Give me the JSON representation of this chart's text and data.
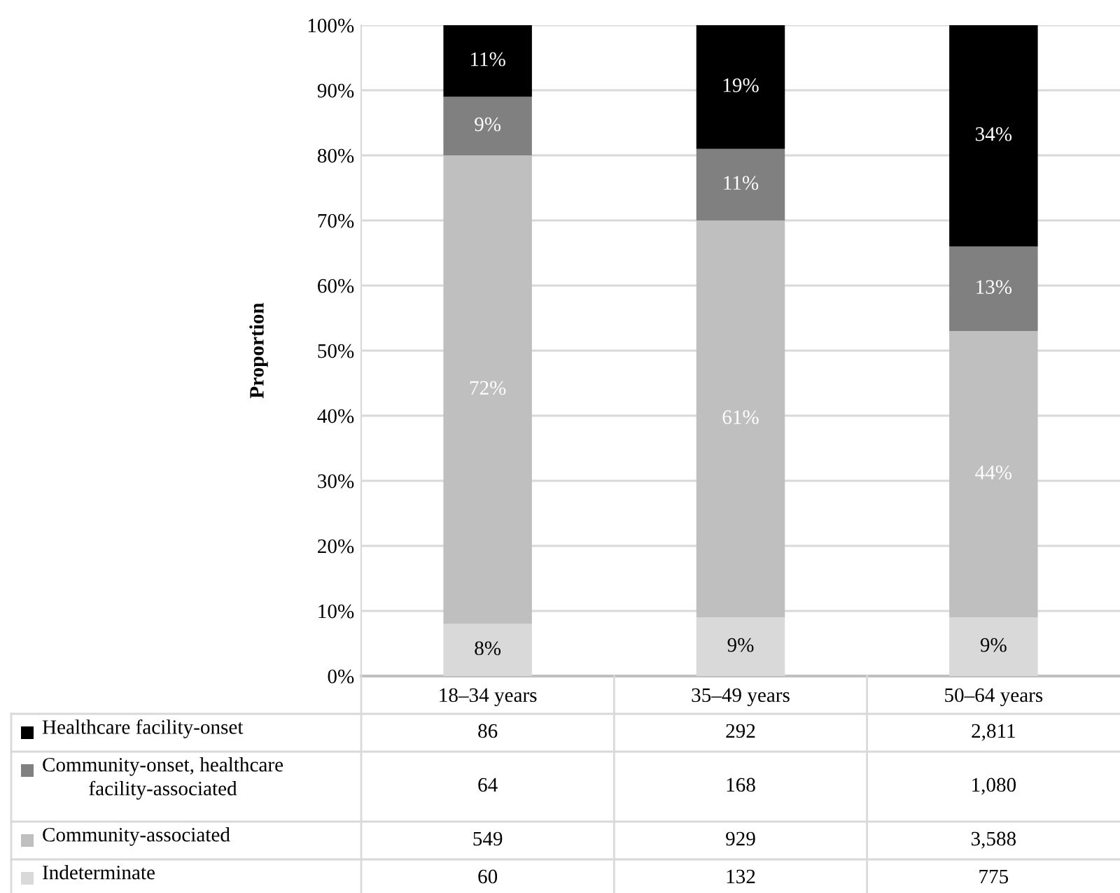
{
  "chart_data": {
    "type": "bar",
    "stacked": true,
    "ylabel": "Proportion",
    "categories": [
      "18–34 years",
      "35–49 years",
      "50–64 years"
    ],
    "series": [
      {
        "name": "Indeterminate",
        "color": "#d9d9d9",
        "values": [
          8,
          9,
          9
        ],
        "value_labels": [
          "8%",
          "9%",
          "9%"
        ]
      },
      {
        "name": "Community-associated",
        "color": "#bfbfbf",
        "values": [
          72,
          61,
          44
        ],
        "value_labels": [
          "72%",
          "61%",
          "44%"
        ]
      },
      {
        "name": "Community-onset, healthcare\nfacility-associated",
        "color": "#808080",
        "values": [
          9,
          11,
          13
        ],
        "value_labels": [
          "9%",
          "11%",
          "13%"
        ]
      },
      {
        "name": "Healthcare facility-onset",
        "color": "#000000",
        "values": [
          11,
          19,
          34
        ],
        "value_labels": [
          "11%",
          "19%",
          "34%"
        ]
      }
    ],
    "ylim": [
      0,
      100
    ],
    "yticks": [
      {
        "value": 0,
        "label": "0%"
      },
      {
        "value": 10,
        "label": "10%"
      },
      {
        "value": 20,
        "label": "20%"
      },
      {
        "value": 30,
        "label": "30%"
      },
      {
        "value": 40,
        "label": "40%"
      },
      {
        "value": 50,
        "label": "50%"
      },
      {
        "value": 60,
        "label": "60%"
      },
      {
        "value": 70,
        "label": "70%"
      },
      {
        "value": 80,
        "label": "80%"
      },
      {
        "value": 90,
        "label": "90%"
      },
      {
        "value": 100,
        "label": "100%"
      }
    ],
    "grid": "y",
    "legend": "bottom",
    "annotations": [
      "60",
      "132",
      "775",
      "549",
      "929",
      "3,588",
      "64",
      "168",
      "1,080",
      "86",
      "292",
      "2,811"
    ]
  }
}
